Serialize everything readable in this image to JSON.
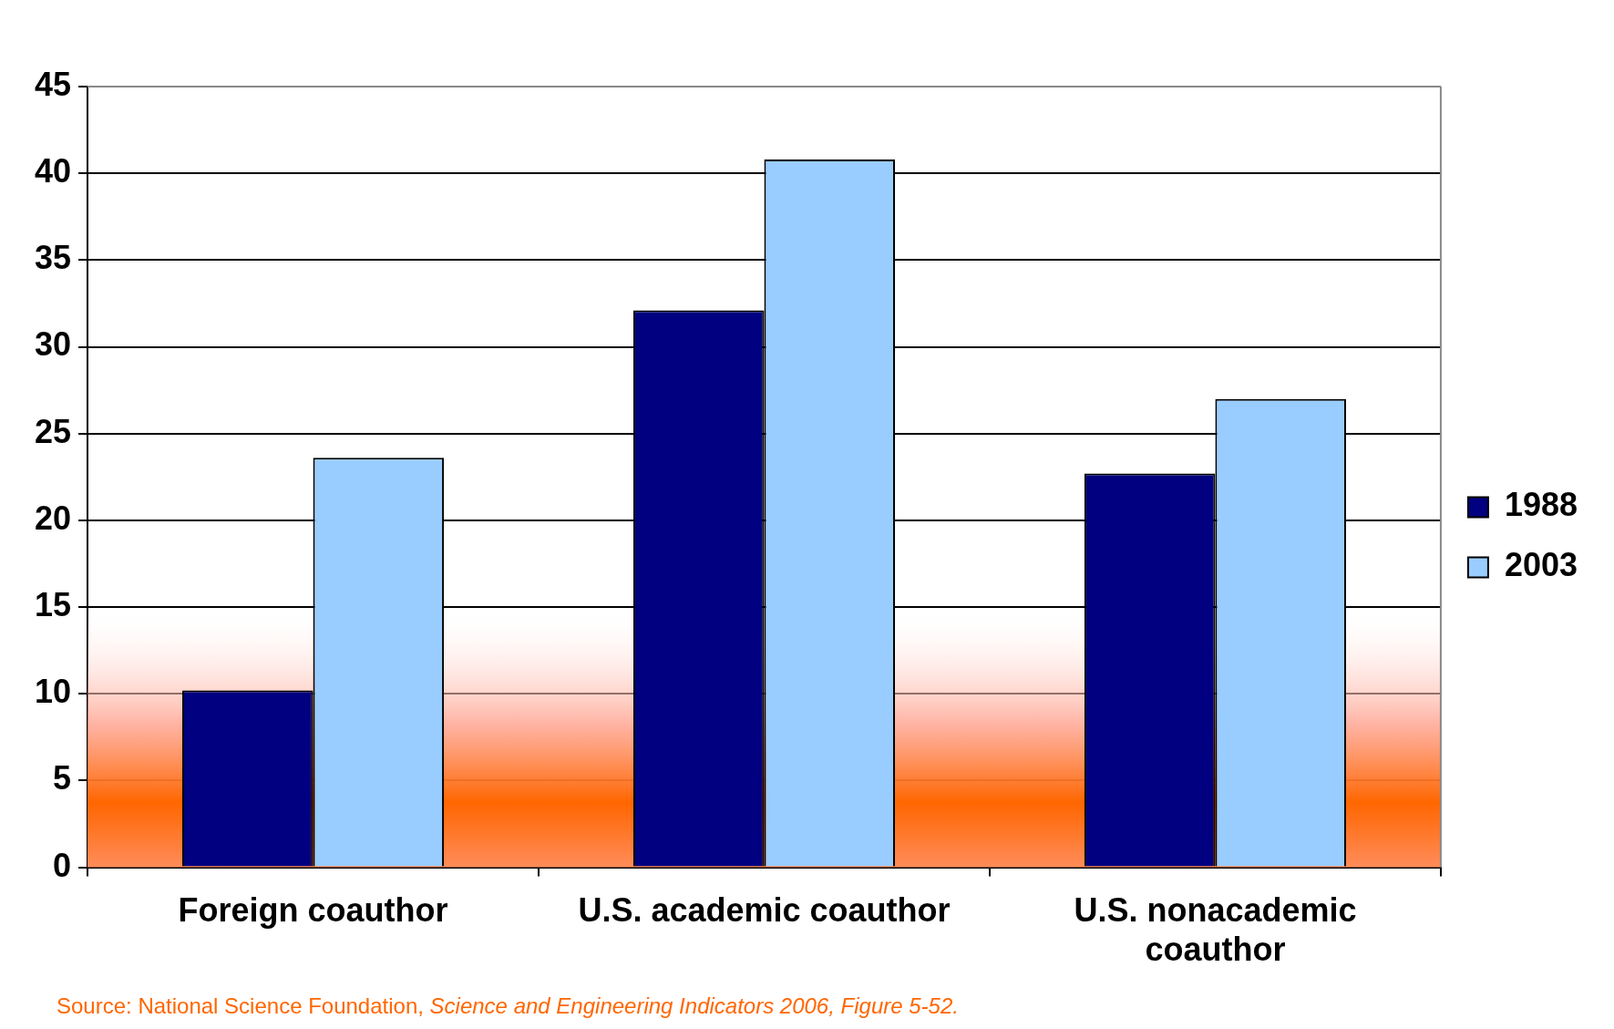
{
  "chart_data": {
    "type": "bar",
    "categories": [
      "Foreign coauthor",
      "U.S. academic coauthor",
      "U.S. nonacademic coauthor"
    ],
    "series": [
      {
        "name": "1988",
        "color": "#000080",
        "values": [
          10.2,
          32.1,
          22.7
        ]
      },
      {
        "name": "2003",
        "color": "#99ccff",
        "values": [
          23.6,
          40.8,
          27.0
        ]
      }
    ],
    "ylim": [
      0,
      45
    ],
    "yticks": [
      0,
      5,
      10,
      15,
      20,
      25,
      30,
      35,
      40,
      45
    ],
    "grid": "y",
    "legend": "right",
    "bands": [
      {
        "axis": "y",
        "from": 0,
        "to": 15,
        "color": "#ff6600"
      }
    ],
    "annotations": [
      "Source: National Science Foundation, ",
      "Science and Engineering Indicators 2006, Figure 5-52."
    ]
  }
}
